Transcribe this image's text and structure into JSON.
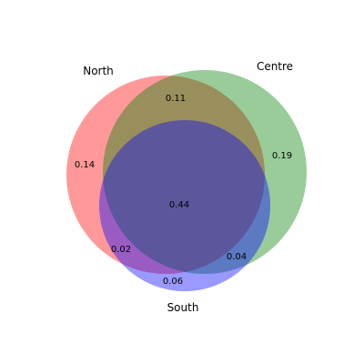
{
  "diagram": {
    "type": "venn3",
    "sets": [
      {
        "key": "A",
        "name": "North",
        "color": "#ff0000"
      },
      {
        "key": "B",
        "name": "Centre",
        "color": "#008000"
      },
      {
        "key": "C",
        "name": "South",
        "color": "#0000ff"
      }
    ],
    "regions": {
      "A_only": "0.14",
      "B_only": "0.19",
      "C_only": "0.06",
      "AB": "0.11",
      "AC": "0.02",
      "BC": "0.04",
      "ABC": "0.44"
    }
  }
}
